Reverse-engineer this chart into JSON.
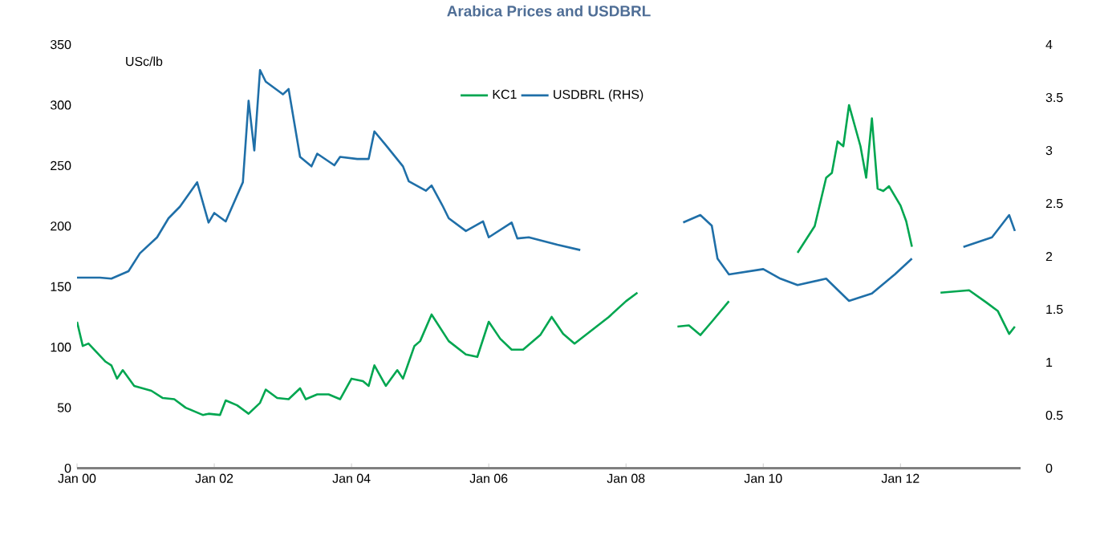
{
  "chart_data": {
    "type": "line",
    "title": "Arabica Prices and USDBRL",
    "ylabel": "USc/lb",
    "xlim": [
      "2000-01",
      "2013-10"
    ],
    "xticks": [
      {
        "value": "2000-01",
        "label": "Jan 00"
      },
      {
        "value": "2002-01",
        "label": "Jan 02"
      },
      {
        "value": "2004-01",
        "label": "Jan 04"
      },
      {
        "value": "2006-01",
        "label": "Jan 06"
      },
      {
        "value": "2008-01",
        "label": "Jan 08"
      },
      {
        "value": "2010-01",
        "label": "Jan 10"
      },
      {
        "value": "2012-01",
        "label": "Jan 12"
      }
    ],
    "ylim": [
      0,
      350
    ],
    "yticks": [
      0,
      50,
      100,
      150,
      200,
      250,
      300,
      350
    ],
    "y2lim": [
      0,
      4
    ],
    "y2ticks": [
      0,
      0.5,
      1,
      1.5,
      2,
      2.5,
      3,
      3.5,
      4
    ],
    "legend": "top",
    "line_style": "solid",
    "series": [
      {
        "name": "KC1",
        "color": "#00a650",
        "x": [
          "2000-01",
          "2000-02",
          "2000-03",
          "2000-06",
          "2000-07",
          "2000-08",
          "2000-09",
          "2000-11",
          "2001-02",
          "2001-04",
          "2001-06",
          "2001-08",
          "2001-11",
          "2001-12",
          "2002-02",
          "2002-03",
          "2002-05",
          "2002-07",
          "2002-09",
          "2002-10",
          "2002-12",
          "2003-02",
          "2003-04",
          "2003-05",
          "2003-07",
          "2003-09",
          "2003-11",
          "2004-01",
          "2004-03",
          "2004-04",
          "2004-05",
          "2004-07",
          "2004-09",
          "2004-10",
          "2004-12",
          "2005-01",
          "2005-03",
          "2005-06",
          "2005-09",
          "2005-11",
          "2006-01",
          "2006-03",
          "2006-05",
          "2006-07",
          "2006-10",
          "2006-12",
          "2007-02",
          "2007-04",
          "2007-07",
          "2007-10",
          "2008-01",
          "2008-03",
          "2008-06",
          "2008-10",
          "2008-12",
          "2009-02",
          "2009-04",
          "2009-07",
          "2010-01",
          "2010-07",
          "2010-10",
          "2010-12",
          "2011-01",
          "2011-02",
          "2011-03",
          "2011-04",
          "2011-06",
          "2011-07",
          "2011-08",
          "2011-09",
          "2011-10",
          "2011-11",
          "2012-01",
          "2012-02",
          "2012-03",
          "2012-05",
          "2012-08",
          "2013-01",
          "2013-04",
          "2013-06",
          "2013-08",
          "2013-09"
        ],
        "values": [
          121,
          101,
          103,
          88,
          85,
          74,
          81,
          68,
          64,
          58,
          57,
          50,
          44,
          45,
          44,
          56,
          52,
          45,
          54,
          65,
          58,
          57,
          66,
          57,
          61,
          61,
          57,
          74,
          72,
          68,
          85,
          68,
          81,
          74,
          101,
          105,
          127,
          105,
          94,
          92,
          121,
          107,
          98,
          98,
          110,
          125,
          111,
          103,
          114,
          125,
          138,
          145,
          null,
          117,
          118,
          110,
          121,
          138,
          null,
          178,
          200,
          240,
          244,
          270,
          266,
          300,
          266,
          240,
          289,
          231,
          229,
          233,
          217,
          204,
          183,
          null,
          145,
          147,
          137,
          130,
          111,
          117
        ]
      },
      {
        "name": "USDBRL (RHS)",
        "color": "#1f6fa8",
        "axis": "y2",
        "x": [
          "2000-01",
          "2000-05",
          "2000-07",
          "2000-10",
          "2000-12",
          "2001-03",
          "2001-05",
          "2001-07",
          "2001-10",
          "2001-12",
          "2002-01",
          "2002-03",
          "2002-06",
          "2002-07",
          "2002-08",
          "2002-09",
          "2002-10",
          "2003-01",
          "2003-02",
          "2003-04",
          "2003-06",
          "2003-07",
          "2003-10",
          "2003-11",
          "2004-02",
          "2004-04",
          "2004-05",
          "2004-07",
          "2004-10",
          "2004-11",
          "2005-02",
          "2005-03",
          "2005-05",
          "2005-06",
          "2005-09",
          "2005-12",
          "2006-01",
          "2006-05",
          "2006-06",
          "2006-08",
          "2007-01",
          "2007-05",
          "2008-01",
          "2008-11",
          "2009-02",
          "2009-04",
          "2009-05",
          "2009-07",
          "2010-01",
          "2010-04",
          "2010-07",
          "2010-12",
          "2011-04",
          "2011-08",
          "2011-12",
          "2012-03",
          "2012-07",
          "2012-12",
          "2013-05",
          "2013-08",
          "2013-09"
        ],
        "values": [
          1.8,
          1.8,
          1.79,
          1.86,
          2.03,
          2.18,
          2.36,
          2.47,
          2.7,
          2.32,
          2.41,
          2.33,
          2.7,
          3.47,
          3.0,
          3.76,
          3.65,
          3.53,
          3.58,
          2.94,
          2.85,
          2.97,
          2.86,
          2.94,
          2.92,
          2.92,
          3.18,
          3.05,
          2.85,
          2.71,
          2.62,
          2.67,
          2.47,
          2.36,
          2.24,
          2.33,
          2.18,
          2.32,
          2.17,
          2.18,
          2.11,
          2.06,
          null,
          2.32,
          2.39,
          2.29,
          1.98,
          1.83,
          1.88,
          1.79,
          1.73,
          1.79,
          1.58,
          1.65,
          1.83,
          1.98,
          null,
          2.09,
          2.18,
          2.39,
          2.24
        ]
      }
    ]
  }
}
